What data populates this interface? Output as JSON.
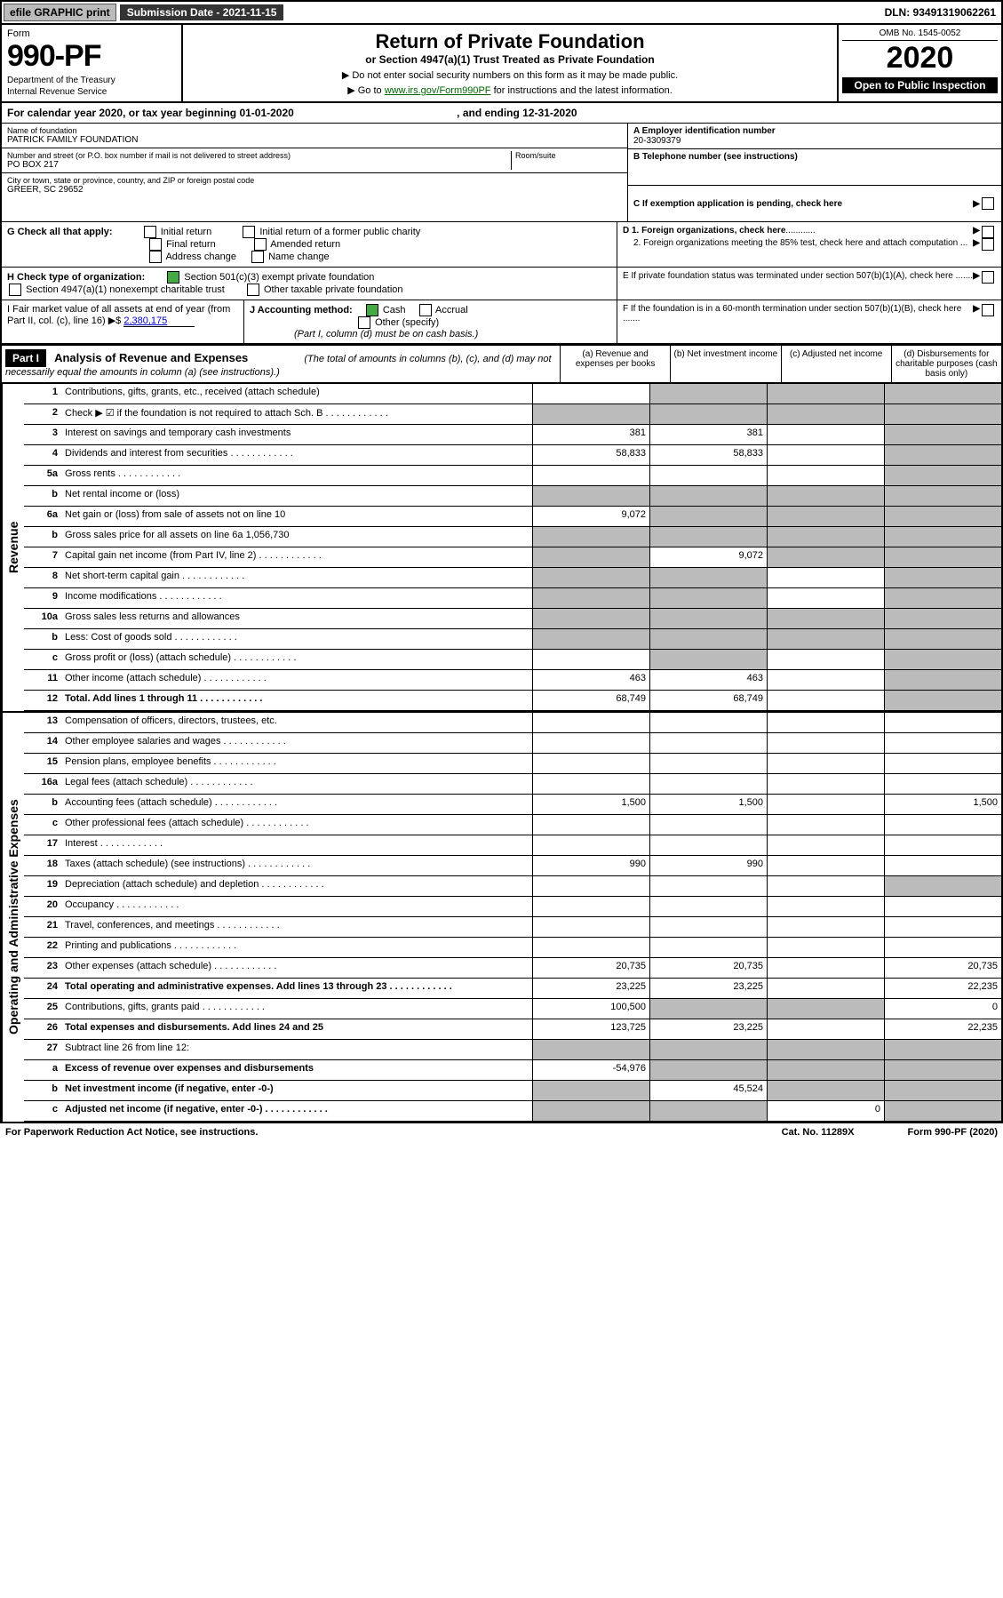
{
  "topbar": {
    "efile": "efile GRAPHIC print",
    "subdate_label": "Submission Date - 2021-11-15",
    "dln": "DLN: 93491319062261"
  },
  "header": {
    "form_word": "Form",
    "form_num": "990-PF",
    "dept": "Department of the Treasury",
    "irs": "Internal Revenue Service",
    "title": "Return of Private Foundation",
    "subtitle": "or Section 4947(a)(1) Trust Treated as Private Foundation",
    "instr1": "▶ Do not enter social security numbers on this form as it may be made public.",
    "instr2": "▶ Go to ",
    "instr_link": "www.irs.gov/Form990PF",
    "instr2b": " for instructions and the latest information.",
    "omb": "OMB No. 1545-0052",
    "year": "2020",
    "open": "Open to Public Inspection"
  },
  "cal": {
    "text": "For calendar year 2020, or tax year beginning 01-01-2020",
    "ending": ", and ending 12-31-2020"
  },
  "info": {
    "name_label": "Name of foundation",
    "name": "PATRICK FAMILY FOUNDATION",
    "addr_label": "Number and street (or P.O. box number if mail is not delivered to street address)",
    "addr": "PO BOX 217",
    "room": "Room/suite",
    "city_label": "City or town, state or province, country, and ZIP or foreign postal code",
    "city": "GREER, SC  29652",
    "ein_label": "A Employer identification number",
    "ein": "20-3309379",
    "tel_label": "B Telephone number (see instructions)",
    "c_label": "C If exemption application is pending, check here"
  },
  "g": {
    "label": "G Check all that apply:",
    "opts": [
      "Initial return",
      "Final return",
      "Address change",
      "Initial return of a former public charity",
      "Amended return",
      "Name change"
    ]
  },
  "h": {
    "label": "H Check type of organization:",
    "opt1": "Section 501(c)(3) exempt private foundation",
    "opt2": "Section 4947(a)(1) nonexempt charitable trust",
    "opt3": "Other taxable private foundation"
  },
  "i": {
    "label": "I Fair market value of all assets at end of year (from Part II, col. (c), line 16) ▶$ ",
    "val": "2,380,175"
  },
  "j": {
    "label": "J Accounting method:",
    "cash": "Cash",
    "accrual": "Accrual",
    "other": "Other (specify)",
    "note": "(Part I, column (d) must be on cash basis.)"
  },
  "d": {
    "d1": "D 1. Foreign organizations, check here",
    "d2": "2. Foreign organizations meeting the 85% test, check here and attach computation ...",
    "e": "E  If private foundation status was terminated under section 507(b)(1)(A), check here .......",
    "f": "F  If the foundation is in a 60-month termination under section 507(b)(1)(B), check here ......."
  },
  "part1": {
    "label": "Part I",
    "title": "Analysis of Revenue and Expenses",
    "note": "(The total of amounts in columns (b), (c), and (d) may not necessarily equal the amounts in column (a) (see instructions).)",
    "cols": [
      "(a)   Revenue and expenses per books",
      "(b)   Net investment income",
      "(c)   Adjusted net income",
      "(d)   Disbursements for charitable purposes (cash basis only)"
    ]
  },
  "side": {
    "rev": "Revenue",
    "exp": "Operating and Administrative Expenses"
  },
  "rows": [
    {
      "n": "1",
      "d": "Contributions, gifts, grants, etc., received (attach schedule)",
      "a": "",
      "b": "grey",
      "c": "grey",
      "e": "grey"
    },
    {
      "n": "2",
      "d": "Check ▶ ☑ if the foundation is not required to attach Sch. B",
      "a": "grey",
      "b": "grey",
      "c": "grey",
      "e": "grey",
      "bold": false,
      "dots": true
    },
    {
      "n": "3",
      "d": "Interest on savings and temporary cash investments",
      "a": "381",
      "b": "381",
      "c": "",
      "e": "grey"
    },
    {
      "n": "4",
      "d": "Dividends and interest from securities",
      "a": "58,833",
      "b": "58,833",
      "c": "",
      "e": "grey",
      "dots": true
    },
    {
      "n": "5a",
      "d": "Gross rents",
      "a": "",
      "b": "",
      "c": "",
      "e": "grey",
      "dots": true
    },
    {
      "n": "b",
      "d": "Net rental income or (loss)",
      "a": "grey",
      "b": "grey",
      "c": "grey",
      "e": "grey"
    },
    {
      "n": "6a",
      "d": "Net gain or (loss) from sale of assets not on line 10",
      "a": "9,072",
      "b": "grey",
      "c": "grey",
      "e": "grey"
    },
    {
      "n": "b",
      "d": "Gross sales price for all assets on line 6a             1,056,730",
      "a": "grey",
      "b": "grey",
      "c": "grey",
      "e": "grey"
    },
    {
      "n": "7",
      "d": "Capital gain net income (from Part IV, line 2)",
      "a": "grey",
      "b": "9,072",
      "c": "grey",
      "e": "grey",
      "dots": true
    },
    {
      "n": "8",
      "d": "Net short-term capital gain",
      "a": "grey",
      "b": "grey",
      "c": "",
      "e": "grey",
      "dots": true
    },
    {
      "n": "9",
      "d": "Income modifications",
      "a": "grey",
      "b": "grey",
      "c": "",
      "e": "grey",
      "dots": true
    },
    {
      "n": "10a",
      "d": "Gross sales less returns and allowances",
      "a": "grey",
      "b": "grey",
      "c": "grey",
      "e": "grey"
    },
    {
      "n": "b",
      "d": "Less: Cost of goods sold",
      "a": "grey",
      "b": "grey",
      "c": "grey",
      "e": "grey",
      "dots": true
    },
    {
      "n": "c",
      "d": "Gross profit or (loss) (attach schedule)",
      "a": "",
      "b": "grey",
      "c": "",
      "e": "grey",
      "dots": true
    },
    {
      "n": "11",
      "d": "Other income (attach schedule)",
      "a": "463",
      "b": "463",
      "c": "",
      "e": "grey",
      "dots": true
    },
    {
      "n": "12",
      "d": "Total. Add lines 1 through 11",
      "a": "68,749",
      "b": "68,749",
      "c": "",
      "e": "grey",
      "bold": true,
      "dots": true
    }
  ],
  "exp_rows": [
    {
      "n": "13",
      "d": "Compensation of officers, directors, trustees, etc.",
      "a": "",
      "b": "",
      "c": "",
      "e": ""
    },
    {
      "n": "14",
      "d": "Other employee salaries and wages",
      "a": "",
      "b": "",
      "c": "",
      "e": "",
      "dots": true
    },
    {
      "n": "15",
      "d": "Pension plans, employee benefits",
      "a": "",
      "b": "",
      "c": "",
      "e": "",
      "dots": true
    },
    {
      "n": "16a",
      "d": "Legal fees (attach schedule)",
      "a": "",
      "b": "",
      "c": "",
      "e": "",
      "dots": true
    },
    {
      "n": "b",
      "d": "Accounting fees (attach schedule)",
      "a": "1,500",
      "b": "1,500",
      "c": "",
      "e": "1,500",
      "dots": true
    },
    {
      "n": "c",
      "d": "Other professional fees (attach schedule)",
      "a": "",
      "b": "",
      "c": "",
      "e": "",
      "dots": true
    },
    {
      "n": "17",
      "d": "Interest",
      "a": "",
      "b": "",
      "c": "",
      "e": "",
      "dots": true
    },
    {
      "n": "18",
      "d": "Taxes (attach schedule) (see instructions)",
      "a": "990",
      "b": "990",
      "c": "",
      "e": "",
      "dots": true
    },
    {
      "n": "19",
      "d": "Depreciation (attach schedule) and depletion",
      "a": "",
      "b": "",
      "c": "",
      "e": "grey",
      "dots": true
    },
    {
      "n": "20",
      "d": "Occupancy",
      "a": "",
      "b": "",
      "c": "",
      "e": "",
      "dots": true
    },
    {
      "n": "21",
      "d": "Travel, conferences, and meetings",
      "a": "",
      "b": "",
      "c": "",
      "e": "",
      "dots": true
    },
    {
      "n": "22",
      "d": "Printing and publications",
      "a": "",
      "b": "",
      "c": "",
      "e": "",
      "dots": true
    },
    {
      "n": "23",
      "d": "Other expenses (attach schedule)",
      "a": "20,735",
      "b": "20,735",
      "c": "",
      "e": "20,735",
      "dots": true
    },
    {
      "n": "24",
      "d": "Total operating and administrative expenses. Add lines 13 through 23",
      "a": "23,225",
      "b": "23,225",
      "c": "",
      "e": "22,235",
      "bold": true,
      "dots": true
    },
    {
      "n": "25",
      "d": "Contributions, gifts, grants paid",
      "a": "100,500",
      "b": "grey",
      "c": "grey",
      "e": "0",
      "dots": true
    },
    {
      "n": "26",
      "d": "Total expenses and disbursements. Add lines 24 and 25",
      "a": "123,725",
      "b": "23,225",
      "c": "",
      "e": "22,235",
      "bold": true
    },
    {
      "n": "27",
      "d": "Subtract line 26 from line 12:",
      "a": "grey",
      "b": "grey",
      "c": "grey",
      "e": "grey"
    },
    {
      "n": "a",
      "d": "Excess of revenue over expenses and disbursements",
      "a": "-54,976",
      "b": "grey",
      "c": "grey",
      "e": "grey",
      "bold": true
    },
    {
      "n": "b",
      "d": "Net investment income (if negative, enter -0-)",
      "a": "grey",
      "b": "45,524",
      "c": "grey",
      "e": "grey",
      "bold": true
    },
    {
      "n": "c",
      "d": "Adjusted net income (if negative, enter -0-)",
      "a": "grey",
      "b": "grey",
      "c": "0",
      "e": "grey",
      "bold": true,
      "dots": true
    }
  ],
  "footer": {
    "left": "For Paperwork Reduction Act Notice, see instructions.",
    "mid": "Cat. No. 11289X",
    "right": "Form 990-PF (2020)"
  }
}
